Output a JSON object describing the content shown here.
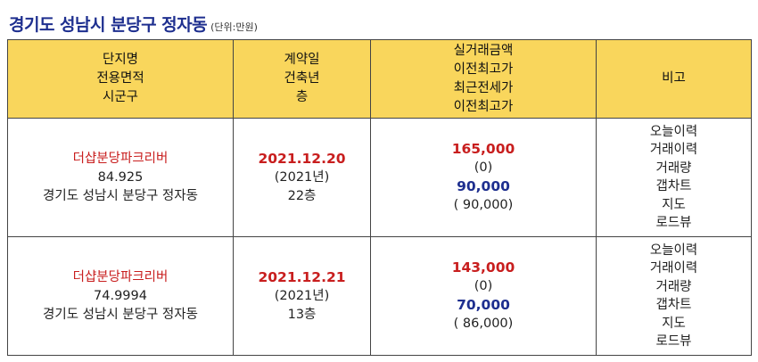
{
  "title": "경기도 성남시 분당구 정자동",
  "unit": "(단위:만원)",
  "headers": {
    "col1": [
      "단지명",
      "전용면적",
      "시군구"
    ],
    "col2": [
      "계약일",
      "건축년",
      "층"
    ],
    "col3": [
      "실거래금액",
      "이전최고가",
      "최근전세가",
      "이전최고가"
    ],
    "col4": [
      "비고"
    ]
  },
  "rows": [
    {
      "apt_name": "더샵분당파크리버",
      "area": "84.925",
      "region": "경기도 성남시 분당구 정자동",
      "contract_date": "2021.12.20",
      "built_year": "(2021년)",
      "floor": "22층",
      "price": "165,000",
      "prev_high": "(0)",
      "jeonse": "90,000",
      "jeonse_prev_high": "( 90,000)",
      "links": [
        "오늘이력",
        "거래이력",
        "거래량",
        "갭차트",
        "지도",
        "로드뷰"
      ]
    },
    {
      "apt_name": "더샵분당파크리버",
      "area": "74.9994",
      "region": "경기도 성남시 분당구 정자동",
      "contract_date": "2021.12.21",
      "built_year": "(2021년)",
      "floor": "13층",
      "price": "143,000",
      "prev_high": "(0)",
      "jeonse": "70,000",
      "jeonse_prev_high": "( 86,000)",
      "links": [
        "오늘이력",
        "거래이력",
        "거래량",
        "갭차트",
        "지도",
        "로드뷰"
      ]
    }
  ]
}
